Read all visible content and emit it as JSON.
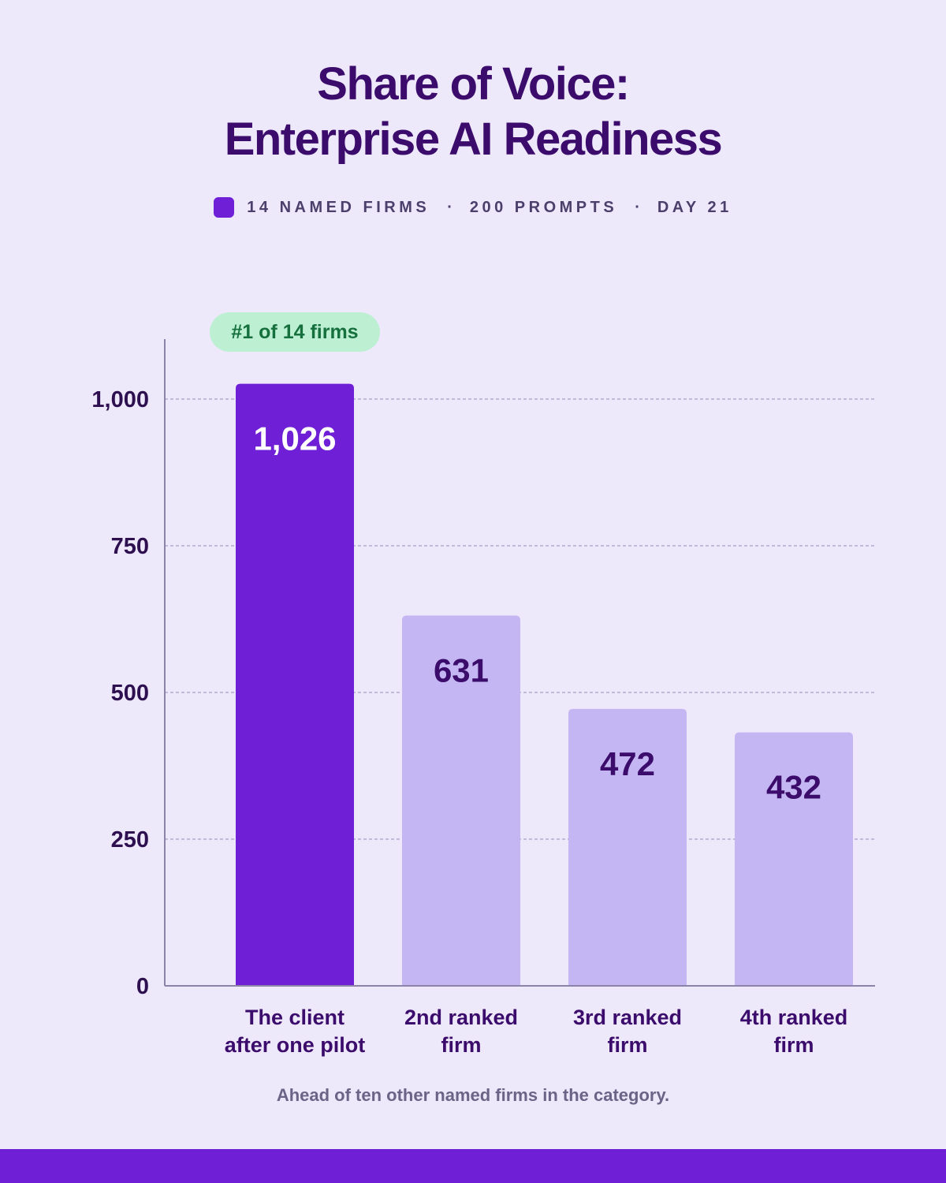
{
  "colors": {
    "background": "#EEE8FB",
    "highlight_bar": "#6F1FD6",
    "other_bars": "#C4B6F2",
    "title": "#3B0C6B",
    "badge_bg": "#BDF0D3",
    "badge_text": "#16703E",
    "bottom_bar": "#6F1FD6"
  },
  "header": {
    "title_line1": "Share of Voice:",
    "title_line2": "Enterprise AI Readiness",
    "meta": [
      "14 NAMED FIRMS",
      "200 PROMPTS",
      "DAY 21"
    ],
    "separator": "·"
  },
  "footnote": "Ahead of ten other named firms in the category.",
  "chart_data": {
    "type": "bar",
    "categories": [
      [
        "The client",
        "after one pilot"
      ],
      [
        "2nd ranked",
        "firm"
      ],
      [
        "3rd ranked",
        "firm"
      ],
      [
        "4th ranked",
        "firm"
      ]
    ],
    "values": [
      1026,
      631,
      472,
      432
    ],
    "data_labels": [
      "1,026",
      "631",
      "472",
      "432"
    ],
    "highlight_index": 0,
    "badge": "#1 of 14 firms",
    "yticks": [
      0,
      250,
      500,
      750,
      1000
    ],
    "ytick_labels": [
      "0",
      "250",
      "500",
      "750",
      "1,000"
    ],
    "ylim": [
      0,
      1100
    ],
    "grid": true,
    "xlabel": "",
    "ylabel": ""
  }
}
